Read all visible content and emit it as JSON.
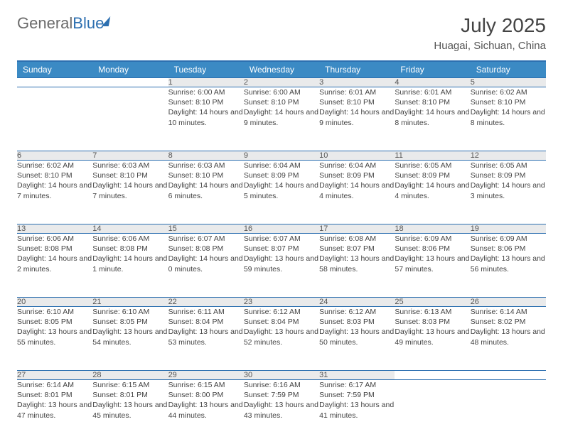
{
  "brand": {
    "name_part1": "General",
    "name_part2": "Blue"
  },
  "title": "July 2025",
  "location": "Huagai, Sichuan, China",
  "colors": {
    "header_bg": "#3b8ac4",
    "border": "#2c6fb0",
    "daynum_bg": "#e9eaeb",
    "text": "#444444",
    "logo_gray": "#6b6b6b"
  },
  "day_headers": [
    "Sunday",
    "Monday",
    "Tuesday",
    "Wednesday",
    "Thursday",
    "Friday",
    "Saturday"
  ],
  "weeks": [
    {
      "nums": [
        "",
        "",
        "1",
        "2",
        "3",
        "4",
        "5"
      ],
      "cells": [
        null,
        null,
        {
          "sunrise": "6:00 AM",
          "sunset": "8:10 PM",
          "daylight": "14 hours and 10 minutes."
        },
        {
          "sunrise": "6:00 AM",
          "sunset": "8:10 PM",
          "daylight": "14 hours and 9 minutes."
        },
        {
          "sunrise": "6:01 AM",
          "sunset": "8:10 PM",
          "daylight": "14 hours and 9 minutes."
        },
        {
          "sunrise": "6:01 AM",
          "sunset": "8:10 PM",
          "daylight": "14 hours and 8 minutes."
        },
        {
          "sunrise": "6:02 AM",
          "sunset": "8:10 PM",
          "daylight": "14 hours and 8 minutes."
        }
      ]
    },
    {
      "nums": [
        "6",
        "7",
        "8",
        "9",
        "10",
        "11",
        "12"
      ],
      "cells": [
        {
          "sunrise": "6:02 AM",
          "sunset": "8:10 PM",
          "daylight": "14 hours and 7 minutes."
        },
        {
          "sunrise": "6:03 AM",
          "sunset": "8:10 PM",
          "daylight": "14 hours and 7 minutes."
        },
        {
          "sunrise": "6:03 AM",
          "sunset": "8:10 PM",
          "daylight": "14 hours and 6 minutes."
        },
        {
          "sunrise": "6:04 AM",
          "sunset": "8:09 PM",
          "daylight": "14 hours and 5 minutes."
        },
        {
          "sunrise": "6:04 AM",
          "sunset": "8:09 PM",
          "daylight": "14 hours and 4 minutes."
        },
        {
          "sunrise": "6:05 AM",
          "sunset": "8:09 PM",
          "daylight": "14 hours and 4 minutes."
        },
        {
          "sunrise": "6:05 AM",
          "sunset": "8:09 PM",
          "daylight": "14 hours and 3 minutes."
        }
      ]
    },
    {
      "nums": [
        "13",
        "14",
        "15",
        "16",
        "17",
        "18",
        "19"
      ],
      "cells": [
        {
          "sunrise": "6:06 AM",
          "sunset": "8:08 PM",
          "daylight": "14 hours and 2 minutes."
        },
        {
          "sunrise": "6:06 AM",
          "sunset": "8:08 PM",
          "daylight": "14 hours and 1 minute."
        },
        {
          "sunrise": "6:07 AM",
          "sunset": "8:08 PM",
          "daylight": "14 hours and 0 minutes."
        },
        {
          "sunrise": "6:07 AM",
          "sunset": "8:07 PM",
          "daylight": "13 hours and 59 minutes."
        },
        {
          "sunrise": "6:08 AM",
          "sunset": "8:07 PM",
          "daylight": "13 hours and 58 minutes."
        },
        {
          "sunrise": "6:09 AM",
          "sunset": "8:06 PM",
          "daylight": "13 hours and 57 minutes."
        },
        {
          "sunrise": "6:09 AM",
          "sunset": "8:06 PM",
          "daylight": "13 hours and 56 minutes."
        }
      ]
    },
    {
      "nums": [
        "20",
        "21",
        "22",
        "23",
        "24",
        "25",
        "26"
      ],
      "cells": [
        {
          "sunrise": "6:10 AM",
          "sunset": "8:05 PM",
          "daylight": "13 hours and 55 minutes."
        },
        {
          "sunrise": "6:10 AM",
          "sunset": "8:05 PM",
          "daylight": "13 hours and 54 minutes."
        },
        {
          "sunrise": "6:11 AM",
          "sunset": "8:04 PM",
          "daylight": "13 hours and 53 minutes."
        },
        {
          "sunrise": "6:12 AM",
          "sunset": "8:04 PM",
          "daylight": "13 hours and 52 minutes."
        },
        {
          "sunrise": "6:12 AM",
          "sunset": "8:03 PM",
          "daylight": "13 hours and 50 minutes."
        },
        {
          "sunrise": "6:13 AM",
          "sunset": "8:03 PM",
          "daylight": "13 hours and 49 minutes."
        },
        {
          "sunrise": "6:14 AM",
          "sunset": "8:02 PM",
          "daylight": "13 hours and 48 minutes."
        }
      ]
    },
    {
      "nums": [
        "27",
        "28",
        "29",
        "30",
        "31",
        "",
        ""
      ],
      "cells": [
        {
          "sunrise": "6:14 AM",
          "sunset": "8:01 PM",
          "daylight": "13 hours and 47 minutes."
        },
        {
          "sunrise": "6:15 AM",
          "sunset": "8:01 PM",
          "daylight": "13 hours and 45 minutes."
        },
        {
          "sunrise": "6:15 AM",
          "sunset": "8:00 PM",
          "daylight": "13 hours and 44 minutes."
        },
        {
          "sunrise": "6:16 AM",
          "sunset": "7:59 PM",
          "daylight": "13 hours and 43 minutes."
        },
        {
          "sunrise": "6:17 AM",
          "sunset": "7:59 PM",
          "daylight": "13 hours and 41 minutes."
        },
        null,
        null
      ]
    }
  ],
  "labels": {
    "sunrise": "Sunrise:",
    "sunset": "Sunset:",
    "daylight": "Daylight:"
  }
}
